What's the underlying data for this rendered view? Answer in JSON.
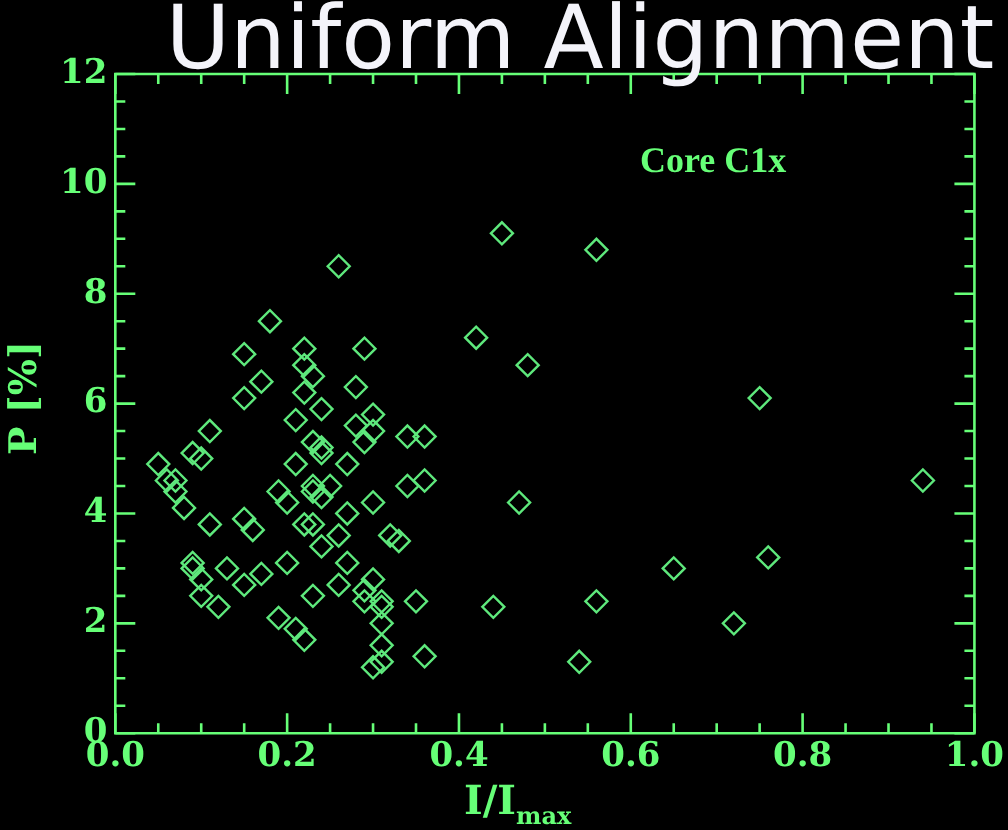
{
  "chart_data": {
    "type": "scatter",
    "title": "Uniform Alignment",
    "xlabel": "I/I$_{max}$",
    "ylabel": "P [%]",
    "annotations": [
      "Core C1x"
    ],
    "xlim": [
      0,
      1
    ],
    "ylim": [
      0,
      12
    ],
    "xticks": [
      {
        "value": 0,
        "label": "0.0"
      },
      {
        "value": 0.05,
        "label": null
      },
      {
        "value": 0.1,
        "label": null
      },
      {
        "value": 0.15,
        "label": null
      },
      {
        "value": 0.2,
        "label": "0.2"
      },
      {
        "value": 0.25,
        "label": null
      },
      {
        "value": 0.3,
        "label": null
      },
      {
        "value": 0.35,
        "label": null
      },
      {
        "value": 0.4,
        "label": "0.4"
      },
      {
        "value": 0.45,
        "label": null
      },
      {
        "value": 0.5,
        "label": null
      },
      {
        "value": 0.55,
        "label": null
      },
      {
        "value": 0.6,
        "label": "0.6"
      },
      {
        "value": 0.65,
        "label": null
      },
      {
        "value": 0.7,
        "label": null
      },
      {
        "value": 0.75,
        "label": null
      },
      {
        "value": 0.8,
        "label": "0.8"
      },
      {
        "value": 0.85,
        "label": null
      },
      {
        "value": 0.9,
        "label": null
      },
      {
        "value": 0.95,
        "label": null
      },
      {
        "value": 1,
        "label": "1.0"
      }
    ],
    "yticks": [
      0,
      {
        "value": 0.5,
        "label": null
      },
      {
        "value": 1,
        "label": null
      },
      {
        "value": 1.5,
        "label": null
      },
      2,
      {
        "value": 2.5,
        "label": null
      },
      {
        "value": 3,
        "label": null
      },
      {
        "value": 3.5,
        "label": null
      },
      4,
      {
        "value": 4.5,
        "label": null
      },
      {
        "value": 5,
        "label": null
      },
      {
        "value": 5.5,
        "label": null
      },
      6,
      {
        "value": 6.5,
        "label": null
      },
      {
        "value": 7,
        "label": null
      },
      {
        "value": 7.5,
        "label": null
      },
      8,
      {
        "value": 8.5,
        "label": null
      },
      {
        "value": 9,
        "label": null
      },
      {
        "value": 9.5,
        "label": null
      },
      10,
      {
        "value": 10.5,
        "label": null
      },
      {
        "value": 11,
        "label": null
      },
      {
        "value": 11.5,
        "label": null
      },
      12
    ],
    "grid": false,
    "legend": false,
    "marker": "diamond",
    "series": [
      {
        "color": "#5ee87c",
        "x": [
          0.26,
          0.18,
          0.15,
          0.22,
          0.29,
          0.17,
          0.15,
          0.22,
          0.23,
          0.22,
          0.28,
          0.24,
          0.21,
          0.3,
          0.28,
          0.3,
          0.11,
          0.34,
          0.09,
          0.1,
          0.05,
          0.06,
          0.07,
          0.07,
          0.23,
          0.24,
          0.24,
          0.29,
          0.21,
          0.27,
          0.23,
          0.25,
          0.19,
          0.2,
          0.23,
          0.24,
          0.34,
          0.3,
          0.08,
          0.11,
          0.27,
          0.15,
          0.16,
          0.22,
          0.23,
          0.24,
          0.26,
          0.32,
          0.33,
          0.09,
          0.09,
          0.1,
          0.13,
          0.2,
          0.27,
          0.17,
          0.15,
          0.23,
          0.26,
          0.3,
          0.29,
          0.1,
          0.12,
          0.29,
          0.31,
          0.31,
          0.35,
          0.19,
          0.31,
          0.21,
          0.22,
          0.31,
          0.31,
          0.3,
          0.42,
          0.48,
          0.36,
          0.36,
          0.47,
          0.44,
          0.36,
          0.54,
          0.56,
          0.45,
          0.75,
          0.94,
          0.76,
          0.65,
          0.56,
          0.72
        ],
        "values": [
          8.5,
          7.5,
          6.9,
          7.0,
          7.0,
          6.4,
          6.1,
          6.7,
          6.5,
          6.2,
          6.3,
          5.9,
          5.7,
          5.8,
          5.6,
          5.5,
          5.5,
          5.4,
          5.1,
          5.0,
          4.9,
          4.6,
          4.6,
          4.4,
          5.3,
          5.2,
          5.1,
          5.3,
          4.9,
          4.9,
          4.5,
          4.5,
          4.4,
          4.2,
          4.4,
          4.3,
          4.5,
          4.2,
          4.1,
          3.8,
          4.0,
          3.9,
          3.7,
          3.8,
          3.8,
          3.4,
          3.6,
          3.6,
          3.5,
          3.1,
          3.0,
          2.8,
          3.0,
          3.1,
          3.1,
          2.9,
          2.7,
          2.5,
          2.7,
          2.8,
          2.6,
          2.5,
          2.3,
          2.4,
          2.4,
          2.3,
          2.4,
          2.1,
          2.0,
          1.9,
          1.7,
          1.6,
          1.3,
          1.2,
          7.2,
          6.7,
          5.4,
          4.6,
          4.2,
          2.3,
          1.4,
          1.3,
          8.8,
          9.1,
          6.1,
          4.6,
          3.2,
          3.0,
          2.4,
          2.0
        ]
      }
    ]
  }
}
